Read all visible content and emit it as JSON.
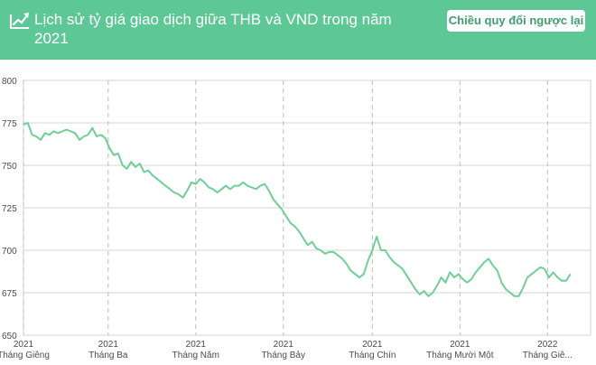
{
  "header": {
    "title": "Lịch sử tỷ giá giao dịch giữa THB và VND trong năm 2021",
    "reverse_button": "Chiều quy đổi ngược lại",
    "icon": "chart-trend-icon"
  },
  "colors": {
    "header_bg": "#5ec796",
    "line": "#6fcf97",
    "grid": "#d6d6d6"
  },
  "chart_data": {
    "type": "line",
    "title": "",
    "xlabel": "",
    "ylabel": "",
    "ylim": [
      650,
      800
    ],
    "yticks": [
      650,
      675,
      700,
      725,
      750,
      775,
      800
    ],
    "grid": true,
    "xlim": [
      "2021-01-01",
      "2022-01-31"
    ],
    "xticks": [
      {
        "date": "2021-01-01",
        "year": "2021",
        "month": "Tháng Giêng"
      },
      {
        "date": "2021-03-01",
        "year": "2021",
        "month": "Tháng Ba"
      },
      {
        "date": "2021-05-01",
        "year": "2021",
        "month": "Tháng Năm"
      },
      {
        "date": "2021-07-01",
        "year": "2021",
        "month": "Tháng Bảy"
      },
      {
        "date": "2021-09-01",
        "year": "2021",
        "month": "Tháng Chín"
      },
      {
        "date": "2021-11-01",
        "year": "2021",
        "month": "Tháng Mười Một"
      },
      {
        "date": "2022-01-01",
        "year": "2022",
        "month": "Tháng Giê..."
      }
    ],
    "series": [
      {
        "points": [
          [
            "2021-01-01",
            774
          ],
          [
            "2021-01-04",
            775
          ],
          [
            "2021-01-07",
            768
          ],
          [
            "2021-01-10",
            767
          ],
          [
            "2021-01-13",
            765
          ],
          [
            "2021-01-16",
            769
          ],
          [
            "2021-01-19",
            768
          ],
          [
            "2021-01-22",
            770
          ],
          [
            "2021-01-25",
            769
          ],
          [
            "2021-01-28",
            770
          ],
          [
            "2021-01-31",
            771
          ],
          [
            "2021-02-03",
            770
          ],
          [
            "2021-02-06",
            769
          ],
          [
            "2021-02-09",
            765
          ],
          [
            "2021-02-12",
            767
          ],
          [
            "2021-02-15",
            768
          ],
          [
            "2021-02-18",
            772
          ],
          [
            "2021-02-21",
            767
          ],
          [
            "2021-02-24",
            768
          ],
          [
            "2021-02-27",
            766
          ],
          [
            "2021-03-02",
            760
          ],
          [
            "2021-03-05",
            756
          ],
          [
            "2021-03-08",
            757
          ],
          [
            "2021-03-11",
            750
          ],
          [
            "2021-03-14",
            748
          ],
          [
            "2021-03-17",
            752
          ],
          [
            "2021-03-20",
            749
          ],
          [
            "2021-03-23",
            751
          ],
          [
            "2021-03-26",
            746
          ],
          [
            "2021-03-29",
            747
          ],
          [
            "2021-04-01",
            744
          ],
          [
            "2021-04-04",
            742
          ],
          [
            "2021-04-07",
            740
          ],
          [
            "2021-04-10",
            738
          ],
          [
            "2021-04-13",
            736
          ],
          [
            "2021-04-16",
            734
          ],
          [
            "2021-04-19",
            733
          ],
          [
            "2021-04-22",
            731
          ],
          [
            "2021-04-25",
            735
          ],
          [
            "2021-04-28",
            740
          ],
          [
            "2021-05-01",
            739
          ],
          [
            "2021-05-04",
            742
          ],
          [
            "2021-05-07",
            740
          ],
          [
            "2021-05-10",
            737
          ],
          [
            "2021-05-13",
            736
          ],
          [
            "2021-05-16",
            734
          ],
          [
            "2021-05-19",
            736
          ],
          [
            "2021-05-22",
            738
          ],
          [
            "2021-05-25",
            736
          ],
          [
            "2021-05-28",
            738
          ],
          [
            "2021-05-31",
            738
          ],
          [
            "2021-06-03",
            740
          ],
          [
            "2021-06-06",
            738
          ],
          [
            "2021-06-09",
            737
          ],
          [
            "2021-06-12",
            736
          ],
          [
            "2021-06-15",
            738
          ],
          [
            "2021-06-18",
            739
          ],
          [
            "2021-06-21",
            735
          ],
          [
            "2021-06-24",
            730
          ],
          [
            "2021-06-27",
            727
          ],
          [
            "2021-06-30",
            724
          ],
          [
            "2021-07-03",
            720
          ],
          [
            "2021-07-06",
            716
          ],
          [
            "2021-07-09",
            714
          ],
          [
            "2021-07-12",
            711
          ],
          [
            "2021-07-15",
            707
          ],
          [
            "2021-07-18",
            703
          ],
          [
            "2021-07-21",
            705
          ],
          [
            "2021-07-24",
            701
          ],
          [
            "2021-07-27",
            700
          ],
          [
            "2021-07-30",
            698
          ],
          [
            "2021-08-02",
            699
          ],
          [
            "2021-08-05",
            699
          ],
          [
            "2021-08-08",
            697
          ],
          [
            "2021-08-11",
            695
          ],
          [
            "2021-08-14",
            692
          ],
          [
            "2021-08-17",
            688
          ],
          [
            "2021-08-20",
            686
          ],
          [
            "2021-08-23",
            684
          ],
          [
            "2021-08-26",
            686
          ],
          [
            "2021-08-29",
            694
          ],
          [
            "2021-09-01",
            700
          ],
          [
            "2021-09-04",
            708
          ],
          [
            "2021-09-07",
            700
          ],
          [
            "2021-09-10",
            700
          ],
          [
            "2021-09-13",
            696
          ],
          [
            "2021-09-16",
            693
          ],
          [
            "2021-09-19",
            691
          ],
          [
            "2021-09-22",
            689
          ],
          [
            "2021-09-25",
            685
          ],
          [
            "2021-09-28",
            681
          ],
          [
            "2021-10-01",
            677
          ],
          [
            "2021-10-04",
            674
          ],
          [
            "2021-10-07",
            676
          ],
          [
            "2021-10-10",
            673
          ],
          [
            "2021-10-13",
            675
          ],
          [
            "2021-10-16",
            679
          ],
          [
            "2021-10-19",
            684
          ],
          [
            "2021-10-22",
            681
          ],
          [
            "2021-10-25",
            687
          ],
          [
            "2021-10-28",
            684
          ],
          [
            "2021-10-31",
            686
          ],
          [
            "2021-11-03",
            683
          ],
          [
            "2021-11-06",
            681
          ],
          [
            "2021-11-09",
            683
          ],
          [
            "2021-11-12",
            687
          ],
          [
            "2021-11-15",
            690
          ],
          [
            "2021-11-18",
            693
          ],
          [
            "2021-11-21",
            695
          ],
          [
            "2021-11-24",
            691
          ],
          [
            "2021-11-27",
            688
          ],
          [
            "2021-11-30",
            681
          ],
          [
            "2021-12-03",
            677
          ],
          [
            "2021-12-06",
            675
          ],
          [
            "2021-12-09",
            673
          ],
          [
            "2021-12-12",
            673
          ],
          [
            "2021-12-15",
            678
          ],
          [
            "2021-12-18",
            684
          ],
          [
            "2021-12-21",
            686
          ],
          [
            "2021-12-24",
            688
          ],
          [
            "2021-12-27",
            690
          ],
          [
            "2021-12-30",
            689
          ],
          [
            "2022-01-02",
            684
          ],
          [
            "2022-01-05",
            687
          ],
          [
            "2022-01-08",
            684
          ],
          [
            "2022-01-11",
            682
          ],
          [
            "2022-01-14",
            682
          ],
          [
            "2022-01-17",
            686
          ]
        ]
      }
    ]
  }
}
